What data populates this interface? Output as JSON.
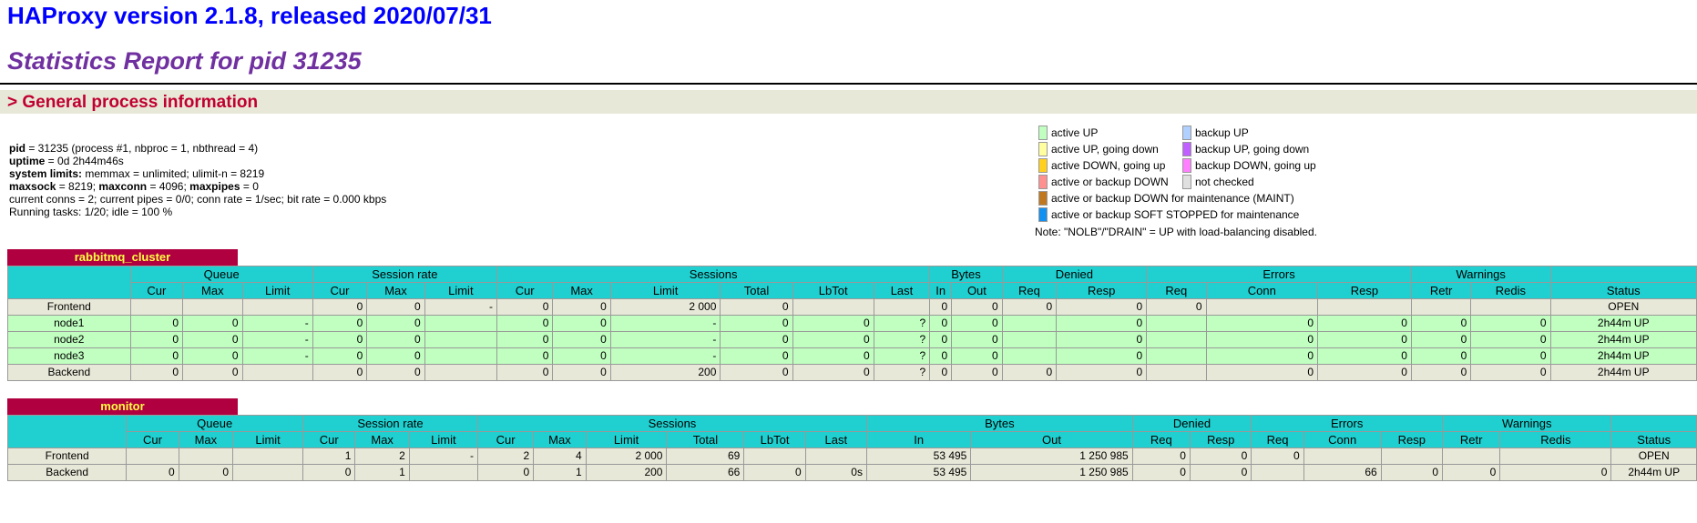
{
  "header": {
    "title": "HAProxy version 2.1.8, released 2020/07/31",
    "subtitle": "Statistics Report for pid 31235",
    "section_title": "> General process information"
  },
  "process_info": {
    "line1_key": "pid",
    "line1_val": " = 31235 (process #1, nbproc = 1, nbthread = 4)",
    "line2_key": "uptime",
    "line2_val": " = 0d 2h44m46s",
    "line3_key": "system limits:",
    "line3_val": " memmax = unlimited; ulimit-n = 8219",
    "line4_k1": "maxsock",
    "line4_v1": " = 8219; ",
    "line4_k2": "maxconn",
    "line4_v2": " = 4096; ",
    "line4_k3": "maxpipes",
    "line4_v3": " = 0",
    "line5": "current conns = 2; current pipes = 0/0; conn rate = 1/sec; bit rate = 0.000 kbps",
    "line6": "Running tasks: 1/20; idle = 100 %"
  },
  "legend": {
    "items": [
      {
        "label": "active UP",
        "color": "#c0ffc0"
      },
      {
        "label": "backup UP",
        "color": "#b0d0ff"
      },
      {
        "label": "active UP, going down",
        "color": "#ffffa0"
      },
      {
        "label": "backup UP, going down",
        "color": "#c060ff"
      },
      {
        "label": "active DOWN, going up",
        "color": "#ffd020"
      },
      {
        "label": "backup DOWN, going up",
        "color": "#ff80ff"
      },
      {
        "label": "active or backup DOWN",
        "color": "#ff9090"
      },
      {
        "label": "not checked",
        "color": "#e0e0e0"
      },
      {
        "label": "active or backup DOWN for maintenance (MAINT)",
        "color": "#c07820"
      },
      {
        "label": "active or backup SOFT STOPPED for maintenance",
        "color": "#1090f0"
      }
    ],
    "note": "Note: \"NOLB\"/\"DRAIN\" = UP with load-balancing disabled."
  },
  "proxies": {
    "rabbitmq": {
      "name": "rabbitmq_cluster",
      "groups": [
        "Queue",
        "Session rate",
        "Sessions",
        "Bytes",
        "Denied",
        "Errors",
        "Warnings"
      ],
      "cols": [
        "Cur",
        "Max",
        "Limit",
        "Cur",
        "Max",
        "Limit",
        "Cur",
        "Max",
        "Limit",
        "Total",
        "LbTot",
        "Last",
        "In",
        "Out",
        "Req",
        "Resp",
        "Req",
        "Conn",
        "Resp",
        "Retr",
        "Redis",
        "Status"
      ],
      "rows": [
        {
          "name": "Frontend",
          "v": [
            "",
            "",
            "",
            "0",
            "0",
            "-",
            "0",
            "0",
            "2 000",
            "0",
            "",
            "",
            "0",
            "0",
            "0",
            "0",
            "0",
            "",
            "",
            "",
            "",
            "OPEN"
          ]
        },
        {
          "name": "node1",
          "v": [
            "0",
            "0",
            "-",
            "0",
            "0",
            "",
            "0",
            "0",
            "-",
            "0",
            "0",
            "?",
            "0",
            "0",
            "",
            "0",
            "",
            "0",
            "0",
            "0",
            "0",
            "2h44m UP"
          ]
        },
        {
          "name": "node2",
          "v": [
            "0",
            "0",
            "-",
            "0",
            "0",
            "",
            "0",
            "0",
            "-",
            "0",
            "0",
            "?",
            "0",
            "0",
            "",
            "0",
            "",
            "0",
            "0",
            "0",
            "0",
            "2h44m UP"
          ]
        },
        {
          "name": "node3",
          "v": [
            "0",
            "0",
            "-",
            "0",
            "0",
            "",
            "0",
            "0",
            "-",
            "0",
            "0",
            "?",
            "0",
            "0",
            "",
            "0",
            "",
            "0",
            "0",
            "0",
            "0",
            "2h44m UP"
          ]
        },
        {
          "name": "Backend",
          "v": [
            "0",
            "0",
            "",
            "0",
            "0",
            "",
            "0",
            "0",
            "200",
            "0",
            "0",
            "?",
            "0",
            "0",
            "0",
            "0",
            "",
            "0",
            "0",
            "0",
            "0",
            "2h44m UP"
          ]
        }
      ]
    },
    "monitor": {
      "name": "monitor",
      "groups": [
        "Queue",
        "Session rate",
        "Sessions",
        "Bytes",
        "Denied",
        "Errors",
        "Warnings"
      ],
      "cols": [
        "Cur",
        "Max",
        "Limit",
        "Cur",
        "Max",
        "Limit",
        "Cur",
        "Max",
        "Limit",
        "Total",
        "LbTot",
        "Last",
        "In",
        "Out",
        "Req",
        "Resp",
        "Req",
        "Conn",
        "Resp",
        "Retr",
        "Redis",
        "Status"
      ],
      "rows": [
        {
          "name": "Frontend",
          "v": [
            "",
            "",
            "",
            "1",
            "2",
            "-",
            "2",
            "4",
            "2 000",
            "69",
            "",
            "",
            "53 495",
            "1 250 985",
            "0",
            "0",
            "0",
            "",
            "",
            "",
            "",
            "OPEN"
          ]
        },
        {
          "name": "Backend",
          "v": [
            "0",
            "0",
            "",
            "0",
            "1",
            "",
            "0",
            "1",
            "200",
            "66",
            "0",
            "0s",
            "53 495",
            "1 250 985",
            "0",
            "0",
            "",
            "66",
            "0",
            "0",
            "0",
            "2h44m UP"
          ]
        }
      ]
    }
  }
}
